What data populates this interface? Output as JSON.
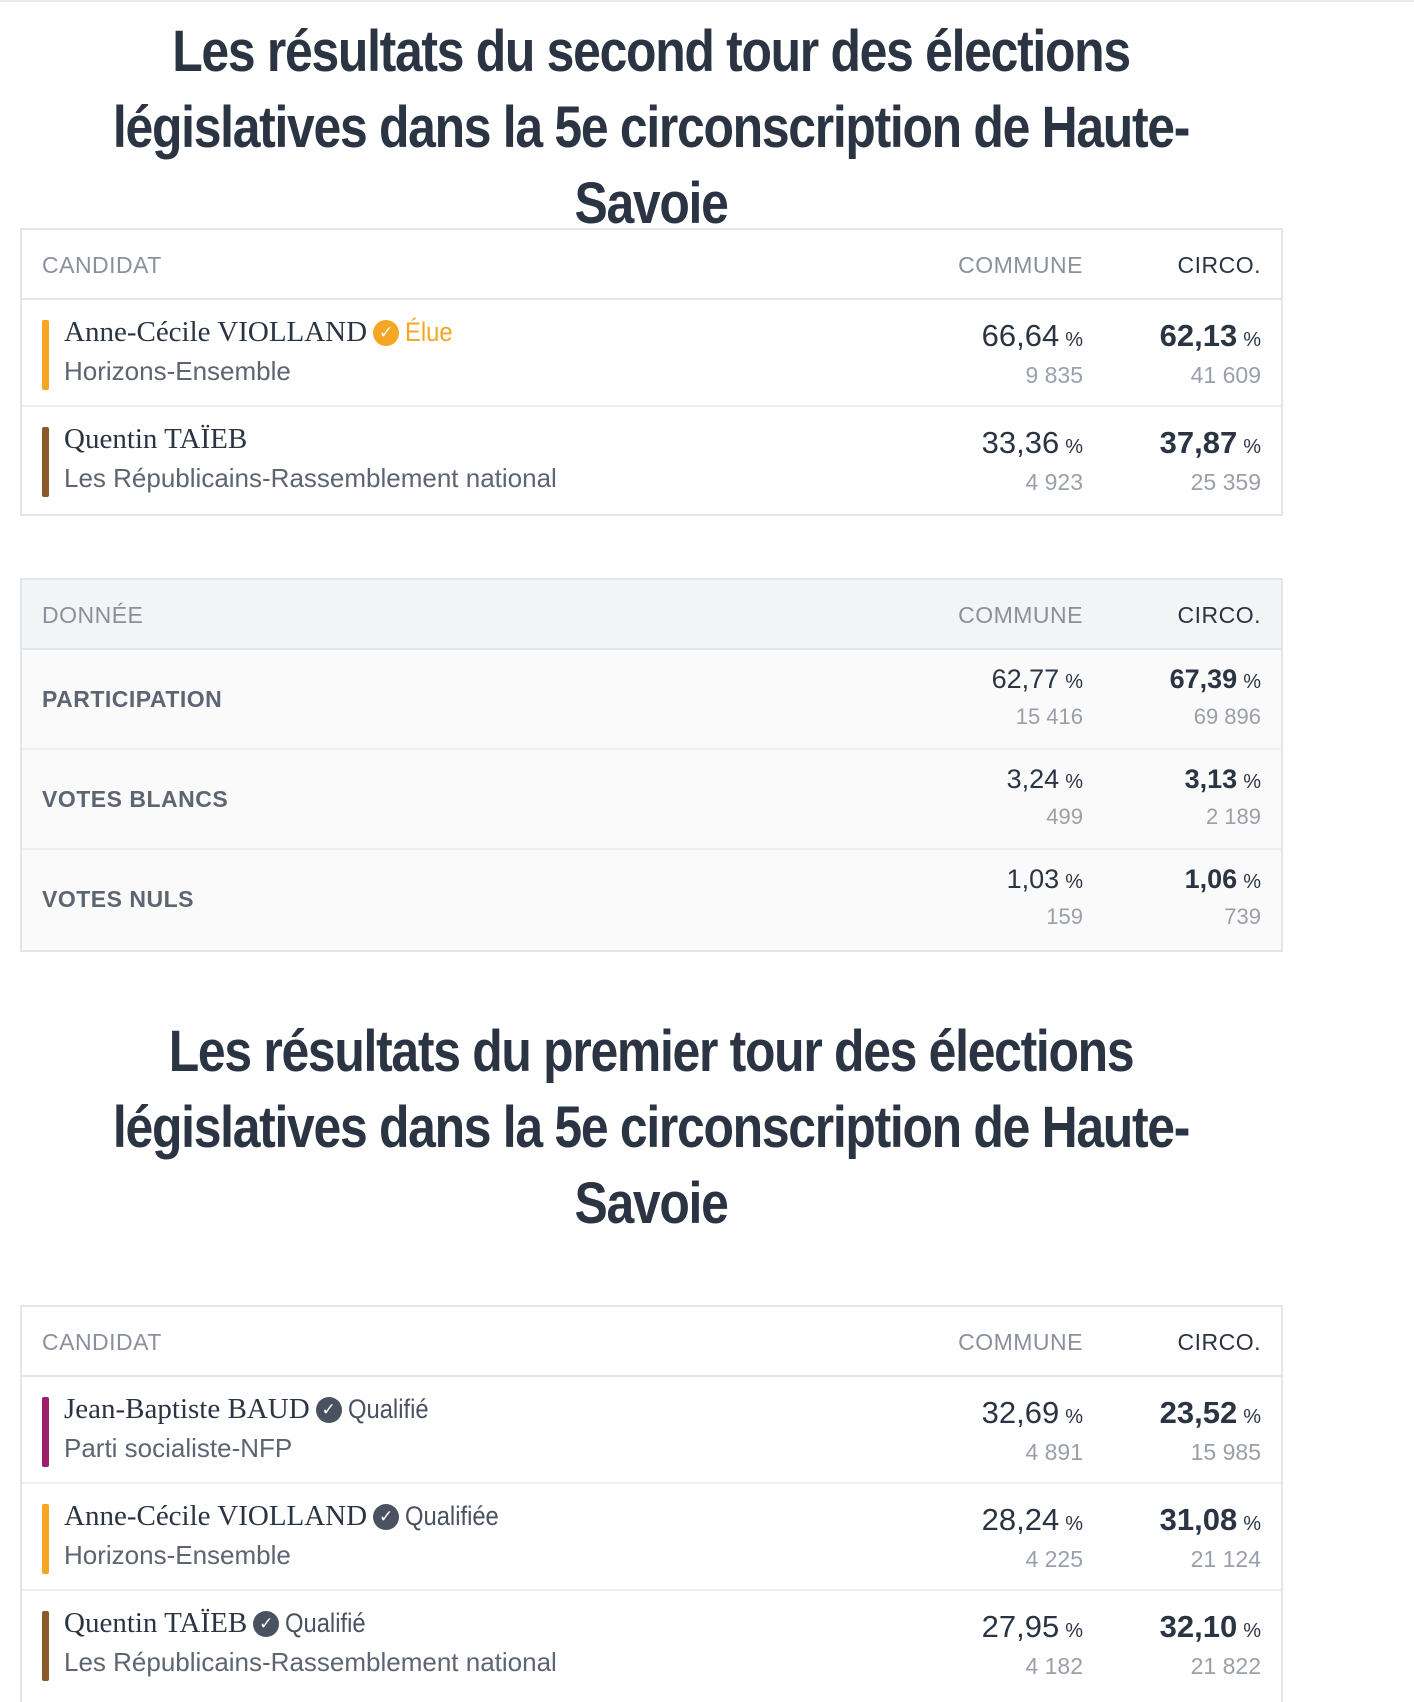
{
  "second_tour": {
    "title": "Les résultats du second tour des élections législatives dans la 5e circonscription de Haute-Savoie",
    "header": {
      "candidat": "CANDIDAT",
      "commune": "COMMUNE",
      "circo": "CIRCO."
    },
    "candidates": [
      {
        "name": "Anne-Cécile VIOLLAND",
        "status": "Élue",
        "status_color": "#f5a623",
        "party": "Horizons-Ensemble",
        "bar_color": "#f5a623",
        "commune_pct": "66,64",
        "commune_votes": "9 835",
        "circo_pct": "62,13",
        "circo_votes": "41 609"
      },
      {
        "name": "Quentin TAÏEB",
        "status": "",
        "party": "Les Républicains-Rassemblement national",
        "bar_color": "#8a5a2b",
        "commune_pct": "33,36",
        "commune_votes": "4 923",
        "circo_pct": "37,87",
        "circo_votes": "25 359"
      }
    ],
    "data_header": {
      "donnee": "DONNÉE",
      "commune": "COMMUNE",
      "circo": "CIRCO."
    },
    "data_rows": [
      {
        "label": "PARTICIPATION",
        "commune_pct": "62,77",
        "commune_count": "15 416",
        "circo_pct": "67,39",
        "circo_count": "69 896"
      },
      {
        "label": "VOTES BLANCS",
        "commune_pct": "3,24",
        "commune_count": "499",
        "circo_pct": "3,13",
        "circo_count": "2 189"
      },
      {
        "label": "VOTES NULS",
        "commune_pct": "1,03",
        "commune_count": "159",
        "circo_pct": "1,06",
        "circo_count": "739"
      }
    ]
  },
  "premier_tour": {
    "title": "Les résultats du premier tour des élections législatives dans la 5e circonscription de Haute-Savoie",
    "header": {
      "candidat": "CANDIDAT",
      "commune": "COMMUNE",
      "circo": "CIRCO."
    },
    "candidates": [
      {
        "name": "Jean-Baptiste BAUD",
        "status": "Qualifié",
        "status_color": "#4a5160",
        "party": "Parti socialiste-NFP",
        "bar_color": "#9b1f6e",
        "commune_pct": "32,69",
        "commune_votes": "4 891",
        "circo_pct": "23,52",
        "circo_votes": "15 985"
      },
      {
        "name": "Anne-Cécile VIOLLAND",
        "status": "Qualifiée",
        "status_color": "#4a5160",
        "party": "Horizons-Ensemble",
        "bar_color": "#f5a623",
        "commune_pct": "28,24",
        "commune_votes": "4 225",
        "circo_pct": "31,08",
        "circo_votes": "21 124"
      },
      {
        "name": "Quentin TAÏEB",
        "status": "Qualifié",
        "status_color": "#4a5160",
        "party": "Les Républicains-Rassemblement national",
        "bar_color": "#8a5a2b",
        "commune_pct": "27,95",
        "commune_votes": "4 182",
        "circo_pct": "32,10",
        "circo_votes": "21 822"
      }
    ]
  },
  "percent_sign": "%",
  "check_icon": "check-circle-icon"
}
